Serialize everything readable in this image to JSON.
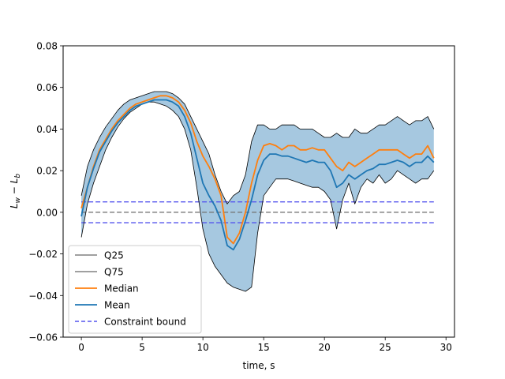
{
  "chart_data": {
    "type": "line",
    "title": "",
    "xlabel": "time, s",
    "ylabel_main": "L",
    "ylabel_sub_1": "w",
    "ylabel_minus": " − ",
    "ylabel_sub_2": "b",
    "xlim": [
      -1.5,
      30.7
    ],
    "ylim": [
      -0.06,
      0.08
    ],
    "xticks": [
      0,
      5,
      10,
      15,
      20,
      25,
      30
    ],
    "xtick_labels": [
      "0",
      "5",
      "10",
      "15",
      "20",
      "25",
      "30"
    ],
    "yticks": [
      -0.06,
      -0.04,
      -0.02,
      0.0,
      0.02,
      0.04,
      0.06,
      0.08
    ],
    "ytick_labels": [
      "−0.06",
      "−0.04",
      "−0.02",
      "0.00",
      "0.02",
      "0.04",
      "0.06",
      "0.08"
    ],
    "grid": false,
    "legend_position": "lower-left",
    "band": {
      "color": "#a6c8e0"
    },
    "x": [
      0,
      0.5,
      1,
      1.5,
      2,
      2.5,
      3,
      3.5,
      4,
      4.5,
      5,
      5.5,
      6,
      6.5,
      7,
      7.5,
      8,
      8.5,
      9,
      9.5,
      10,
      10.5,
      11,
      11.5,
      12,
      12.5,
      13,
      13.5,
      14,
      14.5,
      15,
      15.5,
      16,
      16.5,
      17,
      17.5,
      18,
      18.5,
      19,
      19.5,
      20,
      20.5,
      21,
      21.5,
      22,
      22.5,
      23,
      23.5,
      24,
      24.5,
      25,
      25.5,
      26,
      26.5,
      27,
      27.5,
      28,
      28.5,
      29
    ],
    "series": [
      {
        "name": "Q25",
        "color": "#000000",
        "dash": "",
        "values": [
          -0.012,
          0.004,
          0.014,
          0.022,
          0.03,
          0.036,
          0.041,
          0.045,
          0.048,
          0.05,
          0.052,
          0.053,
          0.053,
          0.052,
          0.051,
          0.049,
          0.046,
          0.04,
          0.03,
          0.012,
          -0.008,
          -0.02,
          -0.026,
          -0.03,
          -0.034,
          -0.036,
          -0.037,
          -0.038,
          -0.036,
          -0.01,
          0.008,
          0.012,
          0.016,
          0.016,
          0.016,
          0.015,
          0.014,
          0.013,
          0.012,
          0.012,
          0.01,
          0.006,
          -0.008,
          0.006,
          0.014,
          0.004,
          0.012,
          0.016,
          0.014,
          0.018,
          0.014,
          0.016,
          0.02,
          0.018,
          0.016,
          0.014,
          0.016,
          0.016,
          0.02
        ]
      },
      {
        "name": "Q75",
        "color": "#000000",
        "dash": "",
        "values": [
          0.008,
          0.022,
          0.03,
          0.036,
          0.041,
          0.045,
          0.049,
          0.052,
          0.054,
          0.055,
          0.056,
          0.057,
          0.058,
          0.058,
          0.058,
          0.057,
          0.055,
          0.052,
          0.046,
          0.04,
          0.034,
          0.028,
          0.018,
          0.01,
          0.004,
          0.008,
          0.01,
          0.018,
          0.034,
          0.042,
          0.042,
          0.04,
          0.04,
          0.042,
          0.042,
          0.042,
          0.04,
          0.04,
          0.04,
          0.038,
          0.036,
          0.036,
          0.038,
          0.036,
          0.036,
          0.04,
          0.038,
          0.038,
          0.04,
          0.042,
          0.042,
          0.044,
          0.046,
          0.044,
          0.042,
          0.044,
          0.044,
          0.046,
          0.04
        ]
      },
      {
        "name": "Median",
        "color": "#ff7f0e",
        "dash": "",
        "values": [
          0.002,
          0.012,
          0.022,
          0.03,
          0.035,
          0.04,
          0.044,
          0.047,
          0.05,
          0.052,
          0.053,
          0.054,
          0.055,
          0.056,
          0.056,
          0.055,
          0.053,
          0.049,
          0.043,
          0.034,
          0.027,
          0.022,
          0.016,
          0.008,
          -0.012,
          -0.015,
          -0.01,
          0.0,
          0.014,
          0.025,
          0.032,
          0.033,
          0.032,
          0.03,
          0.032,
          0.032,
          0.03,
          0.03,
          0.031,
          0.03,
          0.03,
          0.026,
          0.022,
          0.02,
          0.024,
          0.022,
          0.024,
          0.026,
          0.028,
          0.03,
          0.03,
          0.03,
          0.03,
          0.028,
          0.026,
          0.028,
          0.028,
          0.032,
          0.026
        ]
      },
      {
        "name": "Mean",
        "color": "#1f77b4",
        "dash": "",
        "values": [
          -0.002,
          0.012,
          0.021,
          0.029,
          0.034,
          0.039,
          0.043,
          0.046,
          0.049,
          0.051,
          0.052,
          0.053,
          0.054,
          0.054,
          0.054,
          0.053,
          0.051,
          0.046,
          0.038,
          0.026,
          0.014,
          0.008,
          0.003,
          -0.004,
          -0.016,
          -0.018,
          -0.013,
          -0.004,
          0.006,
          0.018,
          0.025,
          0.028,
          0.028,
          0.027,
          0.027,
          0.026,
          0.025,
          0.024,
          0.025,
          0.024,
          0.024,
          0.02,
          0.012,
          0.014,
          0.018,
          0.016,
          0.018,
          0.02,
          0.021,
          0.023,
          0.023,
          0.024,
          0.025,
          0.024,
          0.022,
          0.024,
          0.024,
          0.027,
          0.024
        ]
      }
    ],
    "constraint_bound": {
      "name": "Constraint bound",
      "color": "#5555ee",
      "upper": 0.005,
      "lower": -0.005
    },
    "zero_line": {
      "value": 0.0,
      "color": "#777777"
    }
  }
}
